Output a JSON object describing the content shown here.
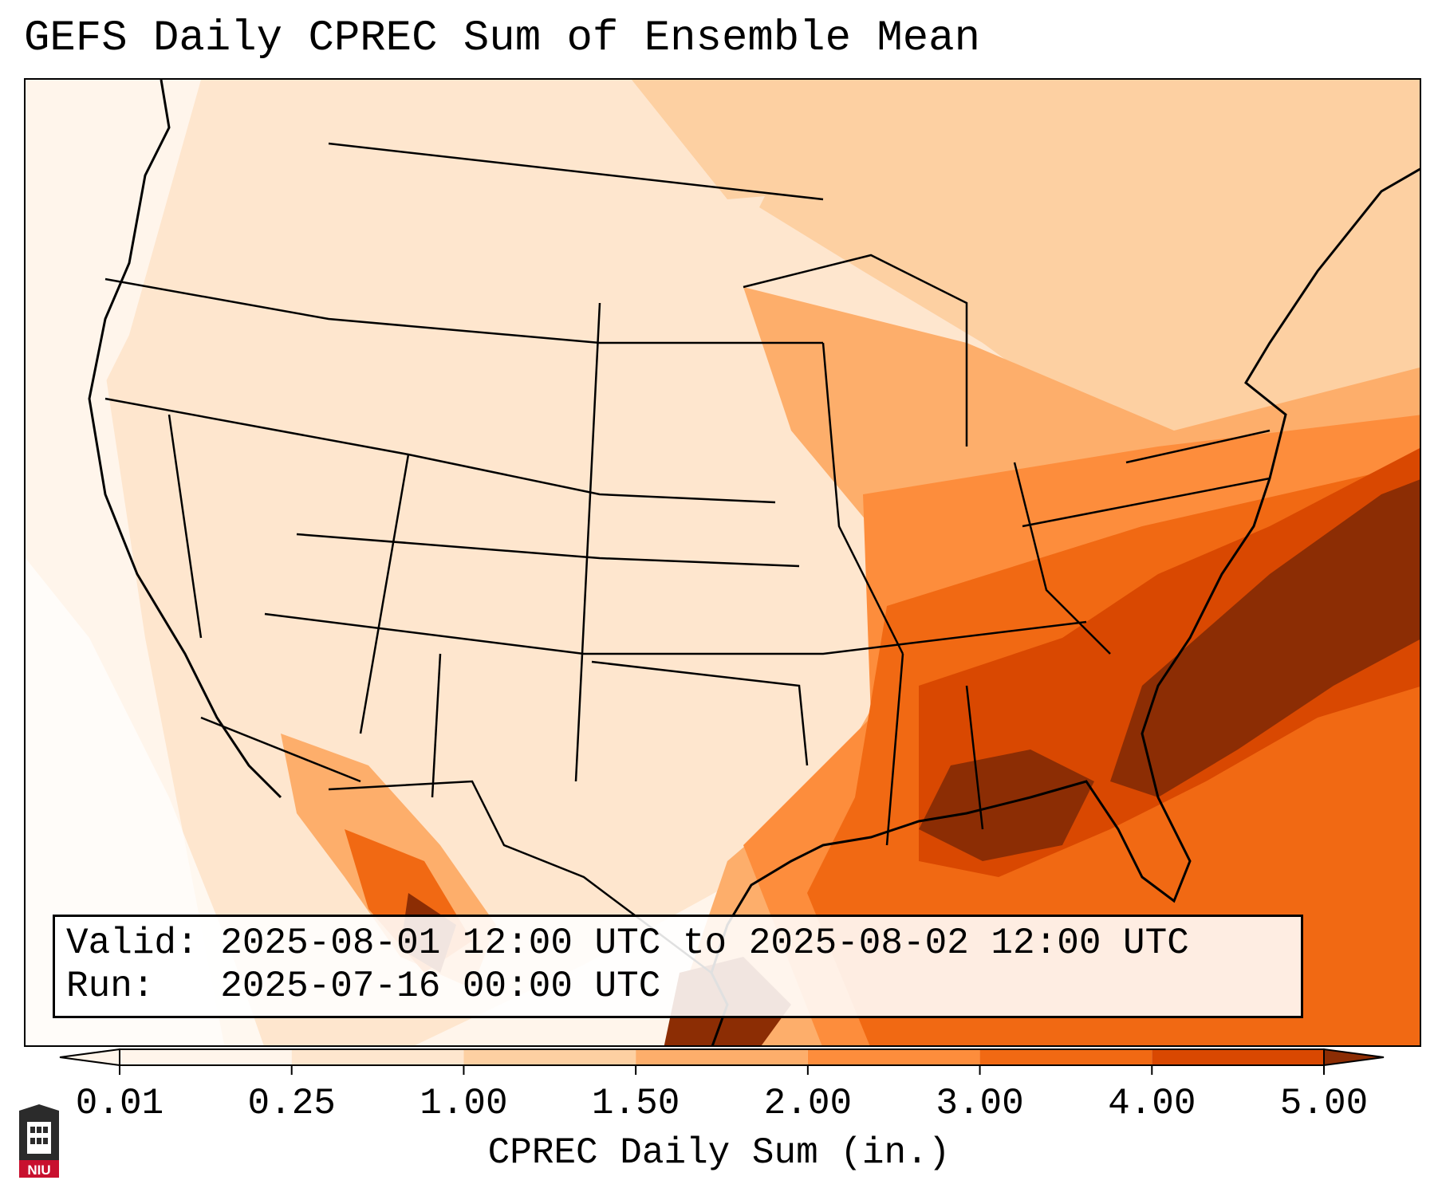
{
  "title": "GEFS Daily CPREC Sum of Ensemble Mean",
  "info": {
    "valid_label": "Valid:",
    "valid_value": "2025-08-01 12:00 UTC to 2025-08-02 12:00 UTC",
    "run_label": "Run:",
    "run_value": "2025-07-16 00:00 UTC"
  },
  "colorbar": {
    "label": "CPREC Daily Sum (in.)",
    "ticks": [
      "0.01",
      "0.25",
      "1.00",
      "1.50",
      "2.00",
      "3.00",
      "4.00",
      "5.00"
    ],
    "colors": [
      "#fff5eb",
      "#fee6ce",
      "#fdd0a2",
      "#fdae6b",
      "#fd8d3c",
      "#f16913",
      "#d94801",
      "#8c2d04"
    ],
    "extend": "both"
  },
  "map": {
    "region": "Continental United States, southern Canada, northern Mexico, Gulf of Mexico, western Atlantic",
    "heavy_precip_areas": [
      "Gulf Coast states",
      "Southeast coast",
      "western Atlantic off the Carolinas",
      "Sierra Madre Occidental (Mexico)"
    ]
  },
  "logo": {
    "text": "NIU",
    "color": "#c8102e",
    "icon": "university-tower-icon"
  }
}
